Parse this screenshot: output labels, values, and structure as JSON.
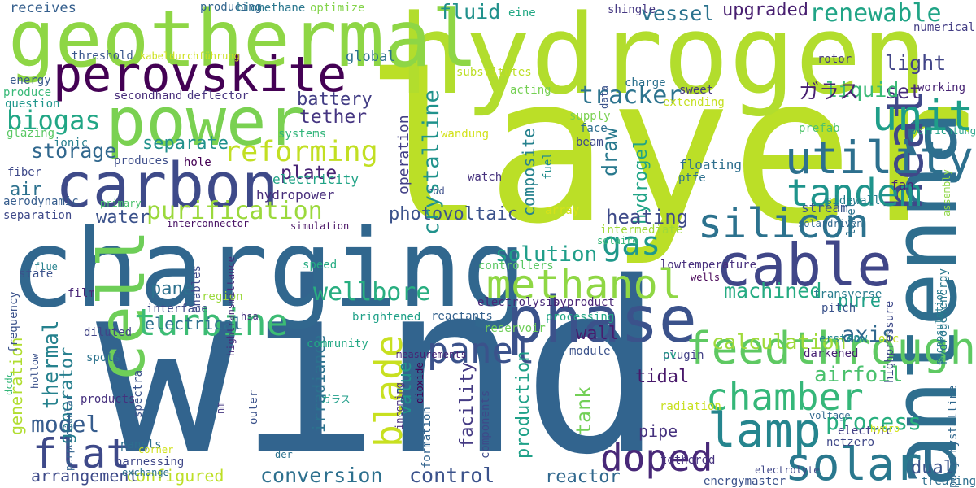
{
  "words": [
    {
      "text": "wind",
      "color": "#32648e"
    },
    {
      "text": "layer",
      "color": "#bbdf27"
    },
    {
      "text": "hydrogen",
      "color": "#b2dd2d"
    },
    {
      "text": "charging",
      "color": "#31678e"
    },
    {
      "text": "geothermal",
      "color": "#8ed645"
    },
    {
      "text": "antenna",
      "color": "#2e6e8e"
    },
    {
      "text": "power",
      "color": "#7ad151"
    },
    {
      "text": "carbon",
      "color": "#3e4a89"
    },
    {
      "text": "perovskite",
      "color": "#440154"
    },
    {
      "text": "phase",
      "color": "#3b528b"
    },
    {
      "text": "cell",
      "color": "#6ece58"
    },
    {
      "text": "cable",
      "color": "#404688"
    },
    {
      "text": "heat",
      "color": "#3f4889"
    },
    {
      "text": "lamp",
      "color": "#25858e"
    },
    {
      "text": "solar",
      "color": "#2a788e"
    },
    {
      "text": "silicon",
      "color": "#2c728e"
    },
    {
      "text": "utility",
      "color": "#2d708e"
    },
    {
      "text": "unit",
      "color": "#1f9e89"
    },
    {
      "text": "tandem",
      "color": "#1f948c"
    },
    {
      "text": "feedthrough",
      "color": "#5ec962"
    },
    {
      "text": "chamber",
      "color": "#35b779"
    },
    {
      "text": "methanol",
      "color": "#8fd744"
    },
    {
      "text": "doped",
      "color": "#482878"
    },
    {
      "text": "turbine",
      "color": "#3dbc74"
    },
    {
      "text": "panel",
      "color": "#3b528b"
    },
    {
      "text": "blade",
      "color": "#c8e020"
    },
    {
      "text": "flat",
      "color": "#3e4989"
    },
    {
      "text": "purification",
      "color": "#9bd93c"
    },
    {
      "text": "renewable",
      "color": "#20a486"
    },
    {
      "text": "gas",
      "color": "#1f988b"
    },
    {
      "text": "reforming",
      "color": "#c2df23"
    },
    {
      "text": "biogas",
      "color": "#21a685"
    },
    {
      "text": "tracker",
      "color": "#2c738e"
    },
    {
      "text": "wellbore",
      "color": "#28ae80"
    },
    {
      "text": "model",
      "color": "#365c8d"
    },
    {
      "text": "photovoltaic",
      "color": "#3b528b"
    },
    {
      "text": "crystalline",
      "color": "#20928c"
    },
    {
      "text": "conversion",
      "color": "#2d708e"
    },
    {
      "text": "control",
      "color": "#3b528b"
    },
    {
      "text": "storage",
      "color": "#31688e"
    },
    {
      "text": "process",
      "color": "#29af7f"
    },
    {
      "text": "airfoil",
      "color": "#4ac16d"
    },
    {
      "text": "tank",
      "color": "#73d056"
    },
    {
      "text": "axis",
      "color": "#31688e"
    },
    {
      "text": "fluid",
      "color": "#21918c"
    },
    {
      "text": "vessel",
      "color": "#2c738e"
    },
    {
      "text": "upgraded",
      "color": "#481f70"
    },
    {
      "text": "light",
      "color": "#414487"
    },
    {
      "text": "set",
      "color": "#472c7a"
    },
    {
      "text": "liquid",
      "color": "#3aba76"
    },
    {
      "text": "ガラス",
      "color": "#482071"
    },
    {
      "text": "global",
      "color": "#2c718e"
    },
    {
      "text": "battery",
      "color": "#433e85"
    },
    {
      "text": "tether",
      "color": "#453581"
    },
    {
      "text": "separate",
      "color": "#21918c"
    },
    {
      "text": "plate",
      "color": "#482475"
    },
    {
      "text": "water",
      "color": "#3b528b"
    },
    {
      "text": "air",
      "color": "#2c718e"
    },
    {
      "text": "thermal",
      "color": "#26828e"
    },
    {
      "text": "generator",
      "color": "#277f8e"
    },
    {
      "text": "generation",
      "color": "#b0dd2f"
    },
    {
      "text": "pane",
      "color": "#2d718e"
    },
    {
      "text": "electrical",
      "color": "#2d708e"
    },
    {
      "text": "draw",
      "color": "#29798e"
    },
    {
      "text": "hydrogel",
      "color": "#20a486"
    },
    {
      "text": "heating",
      "color": "#3e4a89"
    },
    {
      "text": "machined",
      "color": "#25ab82"
    },
    {
      "text": "pure",
      "color": "#1fa187"
    },
    {
      "text": "calculation",
      "color": "#9fda3a"
    },
    {
      "text": "wall",
      "color": "#481b6d"
    },
    {
      "text": "solution",
      "color": "#1f9e89"
    },
    {
      "text": "value",
      "color": "#21918c"
    },
    {
      "text": "production",
      "color": "#1fa188"
    },
    {
      "text": "composite",
      "color": "#26828e"
    },
    {
      "text": "facility",
      "color": "#443a83"
    },
    {
      "text": "irradiance",
      "color": "#2c728e"
    },
    {
      "text": "tidal",
      "color": "#48186a"
    },
    {
      "text": "pipe",
      "color": "#46327e"
    },
    {
      "text": "dual",
      "color": "#3b528b"
    },
    {
      "text": "reactor",
      "color": "#31688e"
    },
    {
      "text": "configured",
      "color": "#bddf26"
    },
    {
      "text": "arrangement",
      "color": "#3e4a89"
    },
    {
      "text": "operation",
      "color": "#424086"
    },
    {
      "text": "floating",
      "color": "#2e6f8e"
    },
    {
      "text": "fan",
      "color": "#482677"
    },
    {
      "text": "stream",
      "color": "#39558c"
    },
    {
      "text": "electricity",
      "color": "#20a386"
    },
    {
      "text": "hydropower",
      "color": "#472d7b"
    },
    {
      "text": "receives",
      "color": "#355f8d"
    },
    {
      "text": "producing",
      "color": "#32658e"
    },
    {
      "text": "biomethane",
      "color": "#2a778e"
    },
    {
      "text": "optimize",
      "color": "#84d44b"
    },
    {
      "text": "eine",
      "color": "#22a884"
    },
    {
      "text": "shingle",
      "color": "#453882"
    },
    {
      "text": "numerical",
      "color": "#433d84"
    },
    {
      "text": "threshold",
      "color": "#39568c"
    },
    {
      "text": "kabeldurchführung",
      "color": "#cde11d"
    },
    {
      "text": "energy",
      "color": "#38598c"
    },
    {
      "text": "produce",
      "color": "#38b977"
    },
    {
      "text": "question",
      "color": "#1f968b"
    },
    {
      "text": "glazing",
      "color": "#5ac864"
    },
    {
      "text": "ionic",
      "color": "#277f8e"
    },
    {
      "text": "fiber",
      "color": "#3e4989"
    },
    {
      "text": "aerodynamic",
      "color": "#365d8d"
    },
    {
      "text": "separation",
      "color": "#3e4989"
    },
    {
      "text": "secondhand",
      "color": "#472c7a"
    },
    {
      "text": "deflector",
      "color": "#46337f"
    },
    {
      "text": "acting",
      "color": "#75d054"
    },
    {
      "text": "supply",
      "color": "#7ad151"
    },
    {
      "text": "face",
      "color": "#2e6e8e"
    },
    {
      "text": "beam",
      "color": "#3e4a89"
    },
    {
      "text": "charge",
      "color": "#2c718e"
    },
    {
      "text": "extending",
      "color": "#c5e021"
    },
    {
      "text": "sweet",
      "color": "#453781"
    },
    {
      "text": "rotor",
      "color": "#453781"
    },
    {
      "text": "working",
      "color": "#482475"
    },
    {
      "text": "prefab",
      "color": "#4ec36b"
    },
    {
      "text": "systems",
      "color": "#30b57a"
    },
    {
      "text": "wandung",
      "color": "#d2e21b"
    },
    {
      "text": "fuel",
      "color": "#228c8d"
    },
    {
      "text": "produces",
      "color": "#3d4d8a"
    },
    {
      "text": "hole",
      "color": "#440154"
    },
    {
      "text": "watch",
      "color": "#46327e"
    },
    {
      "text": "ptfe",
      "color": "#2d708e"
    },
    {
      "text": "primary",
      "color": "#4ac16d"
    },
    {
      "text": "rod",
      "color": "#3d4e8a"
    },
    {
      "text": "array",
      "color": "#d5e21a"
    },
    {
      "text": "interconnector",
      "color": "#471063"
    },
    {
      "text": "simulation",
      "color": "#471063"
    },
    {
      "text": "level",
      "color": "#2c728e"
    },
    {
      "text": "solardriven",
      "color": "#31688e"
    },
    {
      "text": "sidewall",
      "color": "#287d8e"
    },
    {
      "text": "lowtemperature",
      "color": "#472f7d"
    },
    {
      "text": "intermediate",
      "color": "#a0da39"
    },
    {
      "text": "solaire",
      "color": "#35b779"
    },
    {
      "text": "speed",
      "color": "#25ac82"
    },
    {
      "text": "controllers",
      "color": "#5ac864"
    },
    {
      "text": "enables",
      "color": "#3f4889"
    },
    {
      "text": "state",
      "color": "#3b528b"
    },
    {
      "text": "region",
      "color": "#9bd93c"
    },
    {
      "text": "interface",
      "color": "#3e4a89"
    },
    {
      "text": "hightransmittance",
      "color": "#472a7a"
    },
    {
      "text": "electrolysis",
      "color": "#482878"
    },
    {
      "text": "byproduct",
      "color": "#482475"
    },
    {
      "text": "reactants",
      "color": "#34618d"
    },
    {
      "text": "brightened",
      "color": "#1fa188"
    },
    {
      "text": "hsa",
      "color": "#46307e"
    },
    {
      "text": "community",
      "color": "#22a884"
    },
    {
      "text": "processing",
      "color": "#21a685"
    },
    {
      "text": "reservoir",
      "color": "#6ece58"
    },
    {
      "text": "module",
      "color": "#3b528b"
    },
    {
      "text": "plugin",
      "color": "#424086"
    },
    {
      "text": "ev",
      "color": "#1f9f88"
    },
    {
      "text": "darkened",
      "color": "#482173"
    },
    {
      "text": "wells",
      "color": "#440154"
    },
    {
      "text": "ersten",
      "color": "#24868e"
    },
    {
      "text": "raw",
      "color": "#23898e"
    },
    {
      "text": "obc",
      "color": "#c5e021"
    },
    {
      "text": "highpressure",
      "color": "#3e4989"
    },
    {
      "text": "encapsulation",
      "color": "#287c8e"
    },
    {
      "text": "hydrogenenergy",
      "color": "#2a788e"
    },
    {
      "text": "transverse",
      "color": "#287c8e"
    },
    {
      "text": "pitch",
      "color": "#3b528b"
    },
    {
      "text": "frequency",
      "color": "#3b528b"
    },
    {
      "text": "flue",
      "color": "#26828e"
    },
    {
      "text": "film",
      "color": "#482475"
    },
    {
      "text": "diluted",
      "color": "#414487"
    },
    {
      "text": "spots",
      "color": "#2c738e"
    },
    {
      "text": "hollow",
      "color": "#3b528b"
    },
    {
      "text": "products",
      "color": "#46307e"
    },
    {
      "text": "perpendicular",
      "color": "#32648e"
    },
    {
      "text": "spectra",
      "color": "#3b528b"
    },
    {
      "text": "dcdc",
      "color": "#34b679"
    },
    {
      "text": "panels",
      "color": "#2e6e8e"
    },
    {
      "text": "corner",
      "color": "#d0e11c"
    },
    {
      "text": "harnessing",
      "color": "#3f4788"
    },
    {
      "text": "exchange",
      "color": "#2c718e"
    },
    {
      "text": "nm",
      "color": "#453781"
    },
    {
      "text": "outer",
      "color": "#3b528b"
    },
    {
      "text": "der",
      "color": "#2c728e"
    },
    {
      "text": "incoming",
      "color": "#472e7c"
    },
    {
      "text": "measurements",
      "color": "#482475"
    },
    {
      "text": "formation",
      "color": "#32648e"
    },
    {
      "text": "components",
      "color": "#3e4a89"
    },
    {
      "text": "dioxide",
      "color": "#440154"
    },
    {
      "text": "radiation",
      "color": "#c8e020"
    },
    {
      "text": "voltage",
      "color": "#31688e"
    },
    {
      "text": "electric",
      "color": "#424086"
    },
    {
      "text": "netzero",
      "color": "#3f4788"
    },
    {
      "text": "hydro",
      "color": "#d5e21a"
    },
    {
      "text": "electrolyte",
      "color": "#3f4788"
    },
    {
      "text": "tethered",
      "color": "#46337f"
    },
    {
      "text": "energymaster",
      "color": "#3b528b"
    },
    {
      "text": "treating",
      "color": "#2e6f8e"
    },
    {
      "text": "polycrystalline",
      "color": "#31688e"
    },
    {
      "text": "assembly",
      "color": "#8ed645"
    },
    {
      "text": "data",
      "color": "#3b528b"
    },
    {
      "text": "substitutes",
      "color": "#bddf26"
    },
    {
      "text": "vorrichtung",
      "color": "#1fa187"
    },
    {
      "text": "ガラス",
      "color": "#1f9e89"
    }
  ]
}
